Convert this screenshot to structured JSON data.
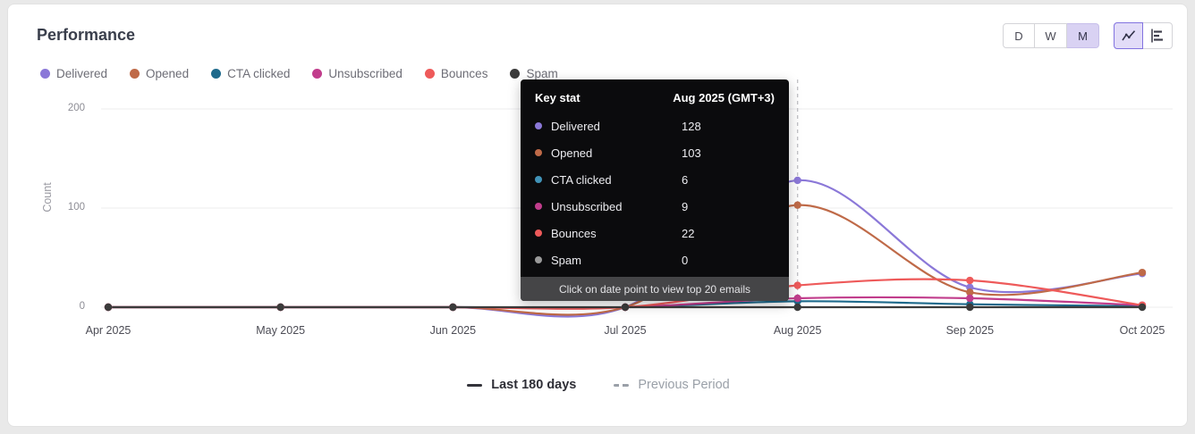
{
  "panel": {
    "title": "Performance"
  },
  "toolbar": {
    "range_buttons": [
      {
        "label": "D",
        "selected": false
      },
      {
        "label": "W",
        "selected": false
      },
      {
        "label": "M",
        "selected": true
      }
    ],
    "chart_type_buttons": [
      {
        "name": "line-chart",
        "selected": true
      },
      {
        "name": "bar-chart",
        "selected": false
      }
    ]
  },
  "legend": [
    {
      "label": "Delivered",
      "color": "#8b78d8"
    },
    {
      "label": "Opened",
      "color": "#bf6a48"
    },
    {
      "label": "CTA clicked",
      "color": "#1f6a8c"
    },
    {
      "label": "Unsubscribed",
      "color": "#c13d8c"
    },
    {
      "label": "Bounces",
      "color": "#ee5a5a"
    },
    {
      "label": "Spam",
      "color": "#3b3b3b"
    }
  ],
  "tooltip": {
    "title": "Key stat",
    "date": "Aug 2025 (GMT+3)",
    "rows": [
      {
        "label": "Delivered",
        "value": "128",
        "color": "#8b78d8"
      },
      {
        "label": "Opened",
        "value": "103",
        "color": "#bf6a48"
      },
      {
        "label": "CTA clicked",
        "value": "6",
        "color": "#4193b8"
      },
      {
        "label": "Unsubscribed",
        "value": "9",
        "color": "#c13d8c"
      },
      {
        "label": "Bounces",
        "value": "22",
        "color": "#ee5a5a"
      },
      {
        "label": "Spam",
        "value": "0",
        "color": "#9a9a9a"
      }
    ],
    "footer": "Click on date point to view top 20 emails"
  },
  "chart_data": {
    "type": "line",
    "x": [
      "Apr 2025",
      "May 2025",
      "Jun 2025",
      "Jul 2025",
      "Aug 2025",
      "Sep 2025",
      "Oct 2025"
    ],
    "xlabel": "",
    "ylabel": "Count",
    "yticks": [
      0,
      100,
      200
    ],
    "ylim": [
      0,
      200
    ],
    "grid": true,
    "legend_position": "top",
    "hover_index": 4,
    "series": [
      {
        "name": "Delivered",
        "color": "#8b78d8",
        "values": [
          0,
          0,
          0,
          0,
          128,
          20,
          34
        ]
      },
      {
        "name": "Opened",
        "color": "#bf6a48",
        "values": [
          0,
          0,
          0,
          0,
          103,
          15,
          35
        ]
      },
      {
        "name": "CTA clicked",
        "color": "#1f6a8c",
        "values": [
          0,
          0,
          0,
          0,
          6,
          3,
          1
        ]
      },
      {
        "name": "Unsubscribed",
        "color": "#c13d8c",
        "values": [
          0,
          0,
          0,
          0,
          9,
          9,
          2
        ]
      },
      {
        "name": "Bounces",
        "color": "#ee5a5a",
        "values": [
          0,
          0,
          0,
          0,
          22,
          27,
          2
        ]
      },
      {
        "name": "Spam",
        "color": "#3b3b3b",
        "values": [
          0,
          0,
          0,
          0,
          0,
          0,
          0
        ]
      }
    ]
  },
  "bottom_legend": {
    "current": "Last 180 days",
    "previous": "Previous Period"
  }
}
